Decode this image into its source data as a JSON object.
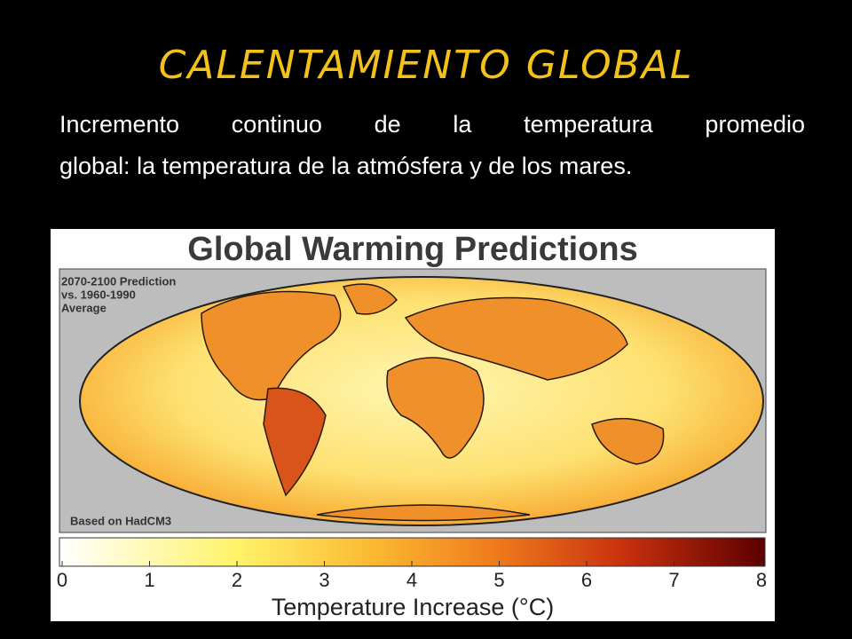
{
  "title": "CALENTAMIENTO GLOBAL",
  "description_lines": [
    "Incremento continuo de la temperatura promedio",
    "global: la temperatura de la atmósfera y de los mares."
  ],
  "figure": {
    "title": "Global Warming Predictions",
    "inset_lines": [
      "2070-2100 Prediction",
      "vs. 1960-1990",
      "Average"
    ],
    "source": "Based on HadCM3",
    "colorbar": {
      "ticks": [
        0,
        1,
        2,
        3,
        4,
        5,
        6,
        7,
        8
      ],
      "label": "Temperature Increase (°C)"
    }
  }
}
